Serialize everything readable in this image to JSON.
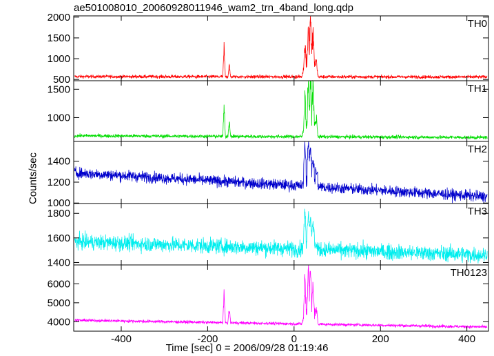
{
  "chart_data": {
    "type": "line",
    "title": "ae501008010_20060928011946_wam2_trn_4band_long.qdp",
    "xlabel": "Time [sec] 0 = 2006/09/28 01:19:46",
    "ylabel": "Counts/sec",
    "xlim": [
      -510,
      450
    ],
    "x_ticks": [
      -400,
      -200,
      0,
      200,
      400
    ],
    "grid": false,
    "panels": [
      {
        "name": "TH0",
        "color": "#ff0000",
        "ylim": [
          470,
          2030
        ],
        "y_ticks": [
          500,
          1000,
          1500,
          2000
        ],
        "baseline_early": 570,
        "baseline_late": 560,
        "noise": 28,
        "features": [
          [
            -162,
            1460
          ],
          [
            -150,
            900
          ],
          [
            25,
            1250
          ],
          [
            33,
            1500
          ],
          [
            38,
            2000
          ],
          [
            44,
            1450
          ],
          [
            52,
            820
          ]
        ]
      },
      {
        "name": "TH1",
        "color": "#00dd00",
        "ylim": [
          580,
          1650
        ],
        "y_ticks": [
          1000,
          1500
        ],
        "baseline_early": 680,
        "baseline_late": 650,
        "noise": 22,
        "features": [
          [
            -162,
            1380
          ],
          [
            -150,
            1000
          ],
          [
            25,
            1460
          ],
          [
            33,
            1600
          ],
          [
            38,
            1650
          ],
          [
            44,
            1500
          ],
          [
            52,
            900
          ]
        ]
      },
      {
        "name": "TH2",
        "color": "#0000cc",
        "ylim": [
          995,
          1590
        ],
        "y_ticks": [
          1000,
          1200,
          1400
        ],
        "baseline_early": 1290,
        "baseline_late": 1060,
        "noise": 38,
        "features": [
          [
            25,
            1560
          ],
          [
            33,
            1540
          ],
          [
            38,
            1480
          ],
          [
            44,
            1300
          ],
          [
            52,
            1240
          ]
        ]
      },
      {
        "name": "TH3",
        "color": "#00eeee",
        "ylim": [
          1380,
          1880
        ],
        "y_ticks": [
          1400,
          1600,
          1800
        ],
        "baseline_early": 1570,
        "baseline_late": 1460,
        "noise": 45,
        "features": [
          [
            25,
            1840
          ],
          [
            33,
            1740
          ],
          [
            38,
            1700
          ],
          [
            44,
            1620
          ]
        ]
      },
      {
        "name": "TH0123",
        "color": "#ff00ff",
        "ylim": [
          3500,
          7000
        ],
        "y_ticks": [
          4000,
          5000,
          6000
        ],
        "baseline_early": 4080,
        "baseline_late": 3720,
        "noise": 55,
        "features": [
          [
            -162,
            5800
          ],
          [
            -150,
            4800
          ],
          [
            25,
            6400
          ],
          [
            33,
            6700
          ],
          [
            38,
            6600
          ],
          [
            44,
            5600
          ],
          [
            52,
            4400
          ]
        ]
      }
    ]
  }
}
